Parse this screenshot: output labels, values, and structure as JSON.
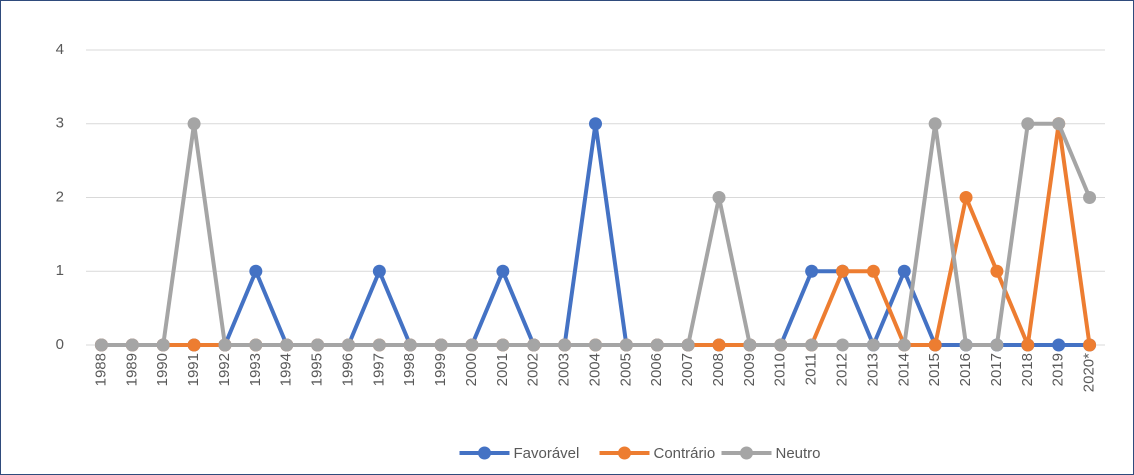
{
  "chart_data": {
    "type": "line",
    "categories": [
      "1988",
      "1989",
      "1990",
      "1991",
      "1992",
      "1993",
      "1994",
      "1995",
      "1996",
      "1997",
      "1998",
      "1999",
      "2000",
      "2001",
      "2002",
      "2003",
      "2004",
      "2005",
      "2006",
      "2007",
      "2008",
      "2009",
      "2010",
      "2011",
      "2012",
      "2013",
      "2014",
      "2015",
      "2016",
      "2017",
      "2018",
      "2019",
      "2020*"
    ],
    "series": [
      {
        "name": "Favorável",
        "color": "#4472c4",
        "values": [
          0,
          0,
          0,
          0,
          0,
          1,
          0,
          0,
          0,
          1,
          0,
          0,
          0,
          1,
          0,
          0,
          3,
          0,
          0,
          0,
          0,
          0,
          0,
          1,
          1,
          0,
          1,
          0,
          0,
          0,
          0,
          0,
          0
        ]
      },
      {
        "name": "Contrário",
        "color": "#ed7d31",
        "values": [
          0,
          0,
          0,
          0,
          0,
          0,
          0,
          0,
          0,
          0,
          0,
          0,
          0,
          0,
          0,
          0,
          0,
          0,
          0,
          0,
          0,
          0,
          0,
          0,
          1,
          1,
          0,
          0,
          2,
          1,
          0,
          3,
          0
        ]
      },
      {
        "name": "Neutro",
        "color": "#a5a5a5",
        "values": [
          0,
          0,
          0,
          3,
          0,
          0,
          0,
          0,
          0,
          0,
          0,
          0,
          0,
          0,
          0,
          0,
          0,
          0,
          0,
          0,
          2,
          0,
          0,
          0,
          0,
          0,
          0,
          3,
          0,
          0,
          3,
          3,
          2
        ]
      }
    ],
    "ylim": [
      0,
      4
    ],
    "yticks": [
      0,
      1,
      2,
      3,
      4
    ],
    "grid": true,
    "legend": "bottom"
  }
}
